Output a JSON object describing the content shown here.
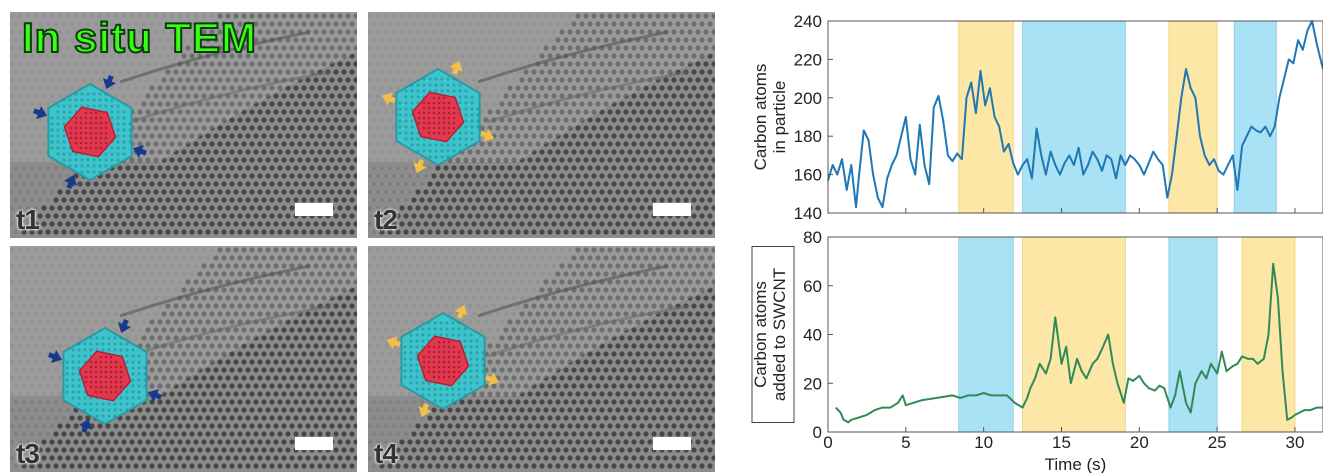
{
  "micrographs": {
    "title": "In situ TEM",
    "panels": [
      {
        "label": "t1",
        "arrows": "inward"
      },
      {
        "label": "t2",
        "arrows": "outward"
      },
      {
        "label": "t3",
        "arrows": "inward"
      },
      {
        "label": "t4",
        "arrows": "outward"
      }
    ]
  },
  "colors": {
    "top_line": "#1f77b4",
    "bottom_line": "#2e8b57",
    "shade_yellow": "#fde7a6",
    "shade_blue": "#a9e1f5"
  },
  "chart_data": [
    {
      "type": "line",
      "title": "",
      "ylabel": "Carbon atoms in particle",
      "xlabel": "",
      "xlim": [
        0,
        31.8
      ],
      "ylim": [
        140,
        240
      ],
      "xticks": [
        0,
        5,
        10,
        15,
        20,
        25,
        30
      ],
      "yticks": [
        140,
        160,
        180,
        200,
        220,
        240
      ],
      "shaded_regions": [
        {
          "x": [
            8.4,
            11.9
          ],
          "color": "yellow"
        },
        {
          "x": [
            12.5,
            19.1
          ],
          "color": "blue"
        },
        {
          "x": [
            21.9,
            25.0
          ],
          "color": "yellow"
        },
        {
          "x": [
            26.1,
            28.8
          ],
          "color": "blue"
        }
      ],
      "series": [
        {
          "x": [
            0,
            0.3,
            0.6,
            0.9,
            1.2,
            1.5,
            1.8,
            2.0,
            2.3,
            2.6,
            2.9,
            3.2,
            3.5,
            3.8,
            4.1,
            4.4,
            4.7,
            5.0,
            5.3,
            5.6,
            5.9,
            6.2,
            6.5,
            6.8,
            7.1,
            7.4,
            7.7,
            8.0,
            8.3,
            8.6,
            8.9,
            9.2,
            9.5,
            9.8,
            10.1,
            10.4,
            10.7,
            11.0,
            11.3,
            11.6,
            11.9,
            12.2,
            12.5,
            12.8,
            13.1,
            13.4,
            13.7,
            14.0,
            14.3,
            14.6,
            14.9,
            15.2,
            15.5,
            15.8,
            16.1,
            16.4,
            16.7,
            17.0,
            17.3,
            17.6,
            17.9,
            18.2,
            18.5,
            18.8,
            19.1,
            19.4,
            19.7,
            20.0,
            20.3,
            20.6,
            20.9,
            21.2,
            21.5,
            21.8,
            22.1,
            22.4,
            22.7,
            23.0,
            23.3,
            23.6,
            23.9,
            24.2,
            24.5,
            24.8,
            25.1,
            25.4,
            25.7,
            26.0,
            26.3,
            26.6,
            26.9,
            27.2,
            27.5,
            27.8,
            28.1,
            28.4,
            28.7,
            29.0,
            29.3,
            29.6,
            29.9,
            30.2,
            30.5,
            30.8,
            31.1,
            31.4,
            31.8
          ],
          "y": [
            157,
            165,
            160,
            168,
            152,
            165,
            143,
            160,
            183,
            178,
            160,
            148,
            143,
            158,
            165,
            170,
            180,
            190,
            168,
            160,
            186,
            165,
            155,
            195,
            201,
            188,
            170,
            167,
            171,
            168,
            200,
            208,
            192,
            214,
            196,
            205,
            190,
            185,
            172,
            176,
            166,
            160,
            165,
            168,
            158,
            184,
            170,
            160,
            172,
            165,
            160,
            166,
            170,
            165,
            174,
            160,
            165,
            172,
            168,
            162,
            170,
            168,
            158,
            170,
            165,
            170,
            168,
            165,
            160,
            166,
            172,
            168,
            165,
            148,
            160,
            180,
            200,
            215,
            205,
            200,
            180,
            170,
            165,
            168,
            162,
            160,
            165,
            170,
            152,
            175,
            180,
            185,
            183,
            182,
            185,
            180,
            185,
            200,
            210,
            220,
            218,
            230,
            225,
            235,
            240,
            228,
            215
          ]
        }
      ]
    },
    {
      "type": "line",
      "title": "",
      "ylabel": "Carbon atoms added to SWCNT",
      "xlabel": "Time (s)",
      "xlim": [
        0,
        31.8
      ],
      "ylim": [
        0,
        80
      ],
      "xticks": [
        0,
        5,
        10,
        15,
        20,
        25,
        30
      ],
      "yticks": [
        0,
        20,
        40,
        60,
        80
      ],
      "shaded_regions": [
        {
          "x": [
            8.4,
            11.9
          ],
          "color": "blue"
        },
        {
          "x": [
            12.5,
            19.1
          ],
          "color": "yellow"
        },
        {
          "x": [
            21.9,
            25.0
          ],
          "color": "blue"
        },
        {
          "x": [
            26.6,
            30.0
          ],
          "color": "yellow"
        }
      ],
      "series": [
        {
          "x": [
            0.5,
            0.8,
            1.0,
            1.3,
            1.5,
            2.0,
            2.5,
            3.0,
            3.5,
            4.0,
            4.5,
            4.8,
            5.0,
            5.5,
            6.0,
            7.0,
            8.0,
            8.5,
            9.0,
            9.5,
            10.0,
            10.5,
            11.0,
            11.5,
            12.0,
            12.5,
            12.8,
            13.0,
            13.3,
            13.6,
            14.0,
            14.3,
            14.6,
            15.0,
            15.3,
            15.6,
            16.0,
            16.3,
            16.6,
            17.0,
            17.3,
            17.6,
            18.0,
            18.3,
            18.6,
            19.0,
            19.3,
            19.6,
            20.0,
            20.3,
            20.6,
            21.0,
            21.3,
            21.6,
            22.0,
            22.3,
            22.6,
            23.0,
            23.3,
            23.6,
            24.0,
            24.3,
            24.6,
            25.0,
            25.3,
            25.6,
            26.0,
            26.3,
            26.6,
            27.0,
            27.3,
            27.6,
            28.0,
            28.3,
            28.6,
            28.9,
            29.2,
            29.5,
            29.8,
            30.0,
            30.3,
            30.6,
            31.0,
            31.4,
            31.8
          ],
          "y": [
            10,
            8,
            5,
            4,
            5,
            6,
            7,
            9,
            10,
            10,
            12,
            15,
            11,
            12,
            13,
            14,
            15,
            14,
            15,
            15,
            16,
            15,
            15,
            15,
            12,
            10,
            14,
            18,
            22,
            28,
            24,
            30,
            47,
            28,
            35,
            20,
            30,
            25,
            22,
            28,
            30,
            34,
            40,
            28,
            20,
            12,
            22,
            21,
            23,
            20,
            18,
            17,
            19,
            18,
            10,
            15,
            25,
            12,
            8,
            20,
            25,
            22,
            28,
            24,
            33,
            25,
            27,
            28,
            31,
            30,
            30,
            28,
            30,
            40,
            69,
            55,
            25,
            5,
            6,
            7,
            8,
            9,
            9,
            10,
            10
          ]
        }
      ]
    }
  ]
}
